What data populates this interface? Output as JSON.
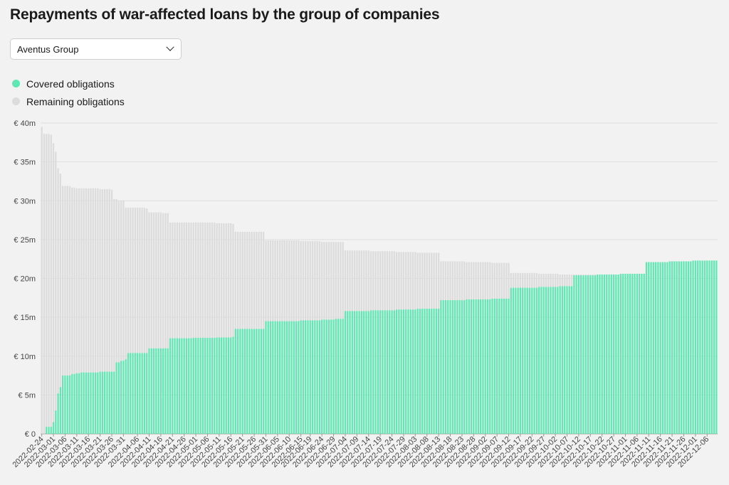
{
  "header": {
    "title": "Repayments of war-affected loans by the group of companies"
  },
  "filter": {
    "selected": "Aventus Group",
    "icon": "chevron-down-icon"
  },
  "legend": [
    {
      "label": "Covered obligations",
      "color": "#5fe8b4"
    },
    {
      "label": "Remaining obligations",
      "color": "#dcdcdc"
    }
  ],
  "chart_data": {
    "type": "bar",
    "stacked": true,
    "xlabel": "",
    "ylabel": "",
    "ylim": [
      0,
      40
    ],
    "y_ticks": [
      0,
      5,
      10,
      15,
      20,
      25,
      30,
      35,
      40
    ],
    "y_tick_labels": [
      "€ 0",
      "€ 5m",
      "€ 10m",
      "€ 15m",
      "€ 20m",
      "€ 25m",
      "€ 30m",
      "€ 35m",
      "€ 40m"
    ],
    "grid": true,
    "start_date": "2022-02-24",
    "end_date": "2022-12-10",
    "x_tick_labels": [
      "2022-02-24",
      "2022-03-01",
      "2022-03-06",
      "2022-03-11",
      "2022-03-16",
      "2022-03-21",
      "2022-03-26",
      "2022-03-31",
      "2022-04-06",
      "2022-04-11",
      "2022-04-16",
      "2022-04-21",
      "2022-04-26",
      "2022-05-01",
      "2022-05-06",
      "2022-05-11",
      "2022-05-16",
      "2022-05-21",
      "2022-05-26",
      "2022-05-31",
      "2022-06-05",
      "2022-06-10",
      "2022-06-15",
      "2022-06-19",
      "2022-06-24",
      "2022-06-29",
      "2022-07-04",
      "2022-07-09",
      "2022-07-14",
      "2022-07-19",
      "2022-07-24",
      "2022-07-29",
      "2022-08-03",
      "2022-08-08",
      "2022-08-13",
      "2022-08-18",
      "2022-08-23",
      "2022-08-28",
      "2022-09-02",
      "2022-09-07",
      "2022-09-12",
      "2022-09-17",
      "2022-09-22",
      "2022-09-27",
      "2022-10-02",
      "2022-10-07",
      "2022-10-12",
      "2022-10-17",
      "2022-10-22",
      "2022-10-27",
      "2022-11-01",
      "2022-11-06",
      "2022-11-11",
      "2022-11-16",
      "2022-11-21",
      "2022-11-26",
      "2022-12-01",
      "2022-12-06"
    ],
    "series": [
      {
        "name": "Covered obligations",
        "color": "#5fe8b4",
        "points": [
          [
            "2022-02-24",
            0.0
          ],
          [
            "2022-02-25",
            0.0
          ],
          [
            "2022-02-26",
            0.9
          ],
          [
            "2022-02-27",
            0.9
          ],
          [
            "2022-02-28",
            0.9
          ],
          [
            "2022-03-01",
            1.5
          ],
          [
            "2022-03-02",
            3.0
          ],
          [
            "2022-03-03",
            5.2
          ],
          [
            "2022-03-04",
            6.0
          ],
          [
            "2022-03-05",
            7.5
          ],
          [
            "2022-03-09",
            7.7
          ],
          [
            "2022-03-11",
            7.8
          ],
          [
            "2022-03-13",
            7.9
          ],
          [
            "2022-03-21",
            8.0
          ],
          [
            "2022-03-28",
            9.2
          ],
          [
            "2022-03-30",
            9.4
          ],
          [
            "2022-04-01",
            9.6
          ],
          [
            "2022-04-02",
            10.4
          ],
          [
            "2022-04-11",
            11.0
          ],
          [
            "2022-04-20",
            12.3
          ],
          [
            "2022-04-30",
            12.35
          ],
          [
            "2022-05-10",
            12.4
          ],
          [
            "2022-05-17",
            12.5
          ],
          [
            "2022-05-18",
            13.5
          ],
          [
            "2022-05-31",
            14.5
          ],
          [
            "2022-06-15",
            14.6
          ],
          [
            "2022-06-24",
            14.7
          ],
          [
            "2022-06-30",
            14.8
          ],
          [
            "2022-07-04",
            15.8
          ],
          [
            "2022-07-15",
            15.9
          ],
          [
            "2022-07-26",
            16.0
          ],
          [
            "2022-08-04",
            16.1
          ],
          [
            "2022-08-14",
            17.2
          ],
          [
            "2022-08-25",
            17.3
          ],
          [
            "2022-09-05",
            17.4
          ],
          [
            "2022-09-13",
            18.8
          ],
          [
            "2022-09-25",
            18.9
          ],
          [
            "2022-10-04",
            19.0
          ],
          [
            "2022-10-10",
            20.4
          ],
          [
            "2022-10-20",
            20.5
          ],
          [
            "2022-10-30",
            20.6
          ],
          [
            "2022-11-10",
            22.1
          ],
          [
            "2022-11-20",
            22.2
          ],
          [
            "2022-11-30",
            22.3
          ],
          [
            "2022-12-10",
            22.3
          ]
        ]
      },
      {
        "name": "Remaining obligations",
        "color": "#dcdcdc",
        "total_points": [
          [
            "2022-02-24",
            39.5
          ],
          [
            "2022-02-25",
            38.6
          ],
          [
            "2022-02-28",
            38.5
          ],
          [
            "2022-03-01",
            37.4
          ],
          [
            "2022-03-02",
            36.3
          ],
          [
            "2022-03-03",
            34.2
          ],
          [
            "2022-03-04",
            33.5
          ],
          [
            "2022-03-05",
            31.9
          ],
          [
            "2022-03-09",
            31.7
          ],
          [
            "2022-03-11",
            31.6
          ],
          [
            "2022-03-21",
            31.5
          ],
          [
            "2022-03-26",
            31.4
          ],
          [
            "2022-03-27",
            30.2
          ],
          [
            "2022-03-29",
            30.0
          ],
          [
            "2022-04-01",
            29.1
          ],
          [
            "2022-04-10",
            29.0
          ],
          [
            "2022-04-11",
            28.5
          ],
          [
            "2022-04-17",
            28.4
          ],
          [
            "2022-04-20",
            27.2
          ],
          [
            "2022-05-10",
            27.1
          ],
          [
            "2022-05-17",
            27.0
          ],
          [
            "2022-05-18",
            26.0
          ],
          [
            "2022-05-31",
            24.9
          ],
          [
            "2022-06-15",
            24.8
          ],
          [
            "2022-06-24",
            24.7
          ],
          [
            "2022-07-04",
            23.6
          ],
          [
            "2022-07-15",
            23.5
          ],
          [
            "2022-07-26",
            23.4
          ],
          [
            "2022-08-04",
            23.3
          ],
          [
            "2022-08-14",
            22.2
          ],
          [
            "2022-08-25",
            22.1
          ],
          [
            "2022-09-05",
            22.0
          ],
          [
            "2022-09-13",
            20.7
          ],
          [
            "2022-09-25",
            20.6
          ],
          [
            "2022-10-04",
            20.5
          ],
          [
            "2022-10-10",
            20.5
          ],
          [
            "2022-12-10",
            20.5
          ]
        ]
      }
    ]
  }
}
